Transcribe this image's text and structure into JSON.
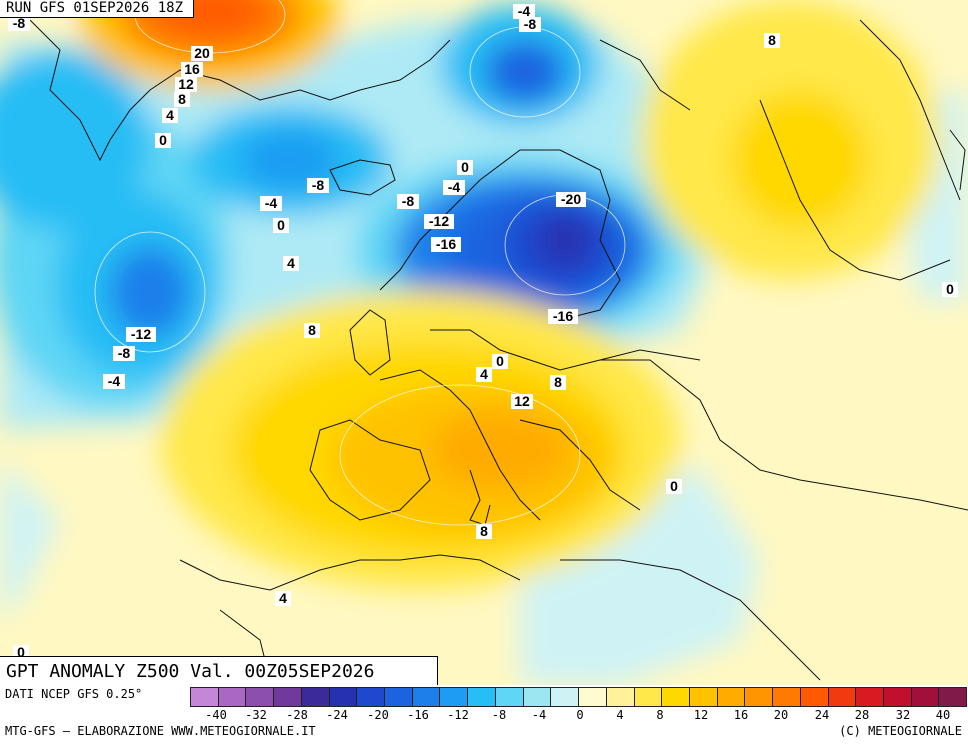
{
  "header": {
    "run_label": "RUN GFS 01SEP2026 18Z"
  },
  "title": {
    "text": "GPT ANOMALY Z500 Val. 00Z05SEP2026"
  },
  "footer": {
    "source": "DATI NCEP GFS 0.25°",
    "credit": "MTG-GFS – ELABORAZIONE WWW.METEOGIORNALE.IT",
    "copyright": "(C) METEOGIORNALE"
  },
  "scale": {
    "colors": [
      "#c486d6",
      "#a868c4",
      "#8c4fae",
      "#6f3a9c",
      "#3a2a9a",
      "#2531b0",
      "#1e49cf",
      "#1d63e0",
      "#1e7fea",
      "#1d9cf2",
      "#27bdf5",
      "#5fd6f5",
      "#9ce6f2",
      "#cff3f5",
      "#fffbd0",
      "#fff29a",
      "#ffe84a",
      "#ffd800",
      "#ffc200",
      "#ffab00",
      "#ff9500",
      "#ff7a00",
      "#ff5a00",
      "#f03a10",
      "#d81b22",
      "#c0102e",
      "#a0103a",
      "#801a48"
    ],
    "tick_labels": [
      "-40",
      "-32",
      "-28",
      "-24",
      "-20",
      "-16",
      "-12",
      "-8",
      "-4",
      "0",
      "4",
      "8",
      "12",
      "16",
      "20",
      "24",
      "28",
      "32",
      "40"
    ]
  },
  "map_labels": [
    "-8",
    "-4",
    "-8",
    "8",
    "20",
    "16",
    "12",
    "8",
    "4",
    "0",
    "0",
    "-4",
    "-8",
    "-8",
    "-4",
    "-20",
    "-12",
    "-16",
    "0",
    "4",
    "8",
    "-12",
    "-8",
    "-4",
    "-16",
    "0",
    "4",
    "8",
    "12",
    "0",
    "8",
    "4",
    "0",
    "0"
  ]
}
